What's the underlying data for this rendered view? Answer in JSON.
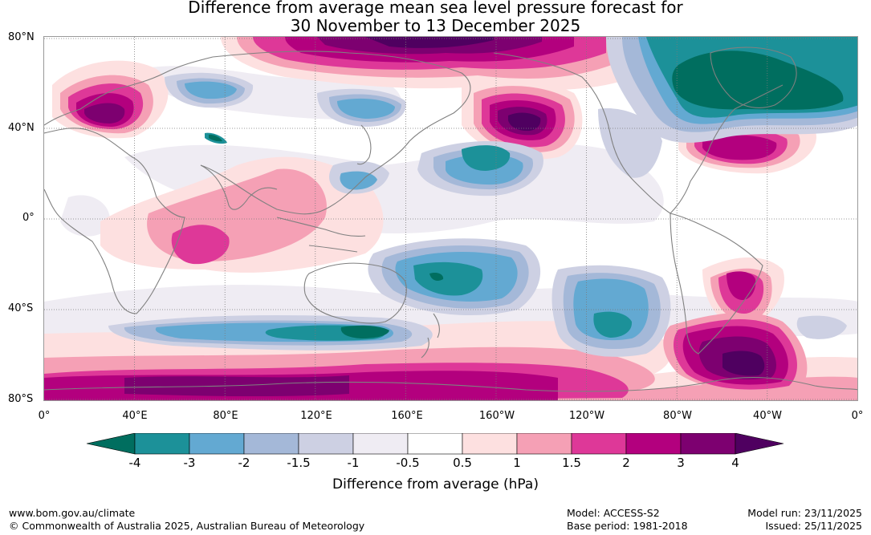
{
  "title": {
    "line1": "Difference from average mean sea level pressure forecast for",
    "line2": "30 November to 13 December 2025"
  },
  "map": {
    "lat_labels": [
      "80°N",
      "40°N",
      "0°",
      "40°S",
      "80°S"
    ],
    "lon_labels": [
      "0°",
      "40°E",
      "80°E",
      "120°E",
      "160°E",
      "160°W",
      "120°W",
      "80°W",
      "40°W",
      "0°"
    ],
    "pressure_anomalies": [
      {
        "region": "Arctic / Greenland / northern Canada",
        "value_hPa": -4
      },
      {
        "region": "North Pacific (Gulf of Alaska)",
        "value_hPa": 4
      },
      {
        "region": "Europe",
        "value_hPa": 3
      },
      {
        "region": "Siberia / Arctic north of Asia",
        "value_hPa": 3
      },
      {
        "region": "North Atlantic",
        "value_hPa": 2
      },
      {
        "region": "Central North Pacific",
        "value_hPa": -3
      },
      {
        "region": "Tasman Sea / east of Australia",
        "value_hPa": -4
      },
      {
        "region": "Southern Ocean south of Australia",
        "value_hPa": -4
      },
      {
        "region": "South-east Pacific",
        "value_hPa": -3
      },
      {
        "region": "South Atlantic / Drake Passage",
        "value_hPa": 4
      },
      {
        "region": "Indian Ocean (tropical)",
        "value_hPa": 2
      },
      {
        "region": "Antarctic margin",
        "value_hPa": 3
      }
    ]
  },
  "colorbar": {
    "title": "Difference from average (hPa)",
    "tick_labels": [
      "-4",
      "-3",
      "-2",
      "-1.5",
      "-1",
      "-0.5",
      "0.5",
      "1",
      "1.5",
      "2",
      "3",
      "4"
    ],
    "colors": [
      "#006e5f",
      "#1c9199",
      "#63a9d2",
      "#a4b8d8",
      "#cdd0e3",
      "#efecf3",
      "#ffffff",
      "#fde0e0",
      "#f5a0b5",
      "#de3898",
      "#b3007e",
      "#7d0070",
      "#4f0060"
    ]
  },
  "footer": {
    "website": "www.bom.gov.au/climate",
    "copyright": "© Commonwealth of Australia 2025, Australian Bureau of Meteorology",
    "model": "Model: ACCESS-S2",
    "base_period": "Base period: 1981-2018",
    "model_run": "Model run: 23/11/2025",
    "issued": "Issued: 25/11/2025"
  }
}
